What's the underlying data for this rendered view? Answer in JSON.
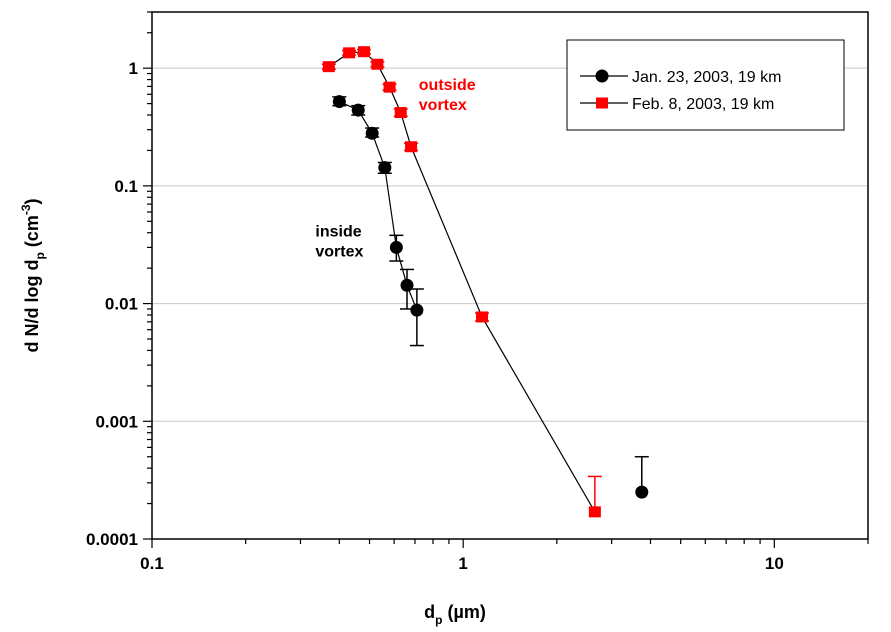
{
  "chart_data": {
    "type": "scatter",
    "x_scale": "log",
    "y_scale": "log",
    "xlim": [
      0.1,
      20
    ],
    "ylim": [
      0.0001,
      3
    ],
    "x_ticks": [
      {
        "value": 0.1,
        "label": "0.1"
      },
      {
        "value": 1,
        "label": "1"
      },
      {
        "value": 10,
        "label": "10"
      }
    ],
    "y_ticks": [
      {
        "value": 0.0001,
        "label": "0.0001"
      },
      {
        "value": 0.001,
        "label": "0.001"
      },
      {
        "value": 0.01,
        "label": "0.01"
      },
      {
        "value": 0.1,
        "label": "0.1"
      },
      {
        "value": 1,
        "label": "1"
      }
    ],
    "xlabel": {
      "main": "d",
      "sub": "p",
      "rest": " (µm)"
    },
    "ylabel": {
      "p1": "d N/d log d",
      "sub": "p",
      "p2": " (cm",
      "sup": "-3",
      "p3": ")"
    },
    "grid": "horizontal",
    "legend_position": "top-right",
    "series": [
      {
        "name": "Jan. 23, 2003, 19 km",
        "marker": "circle",
        "color": "#000000",
        "points": [
          {
            "x": 0.4,
            "y": 0.52,
            "lo": 0.48,
            "hi": 0.57
          },
          {
            "x": 0.46,
            "y": 0.44,
            "lo": 0.4,
            "hi": 0.48
          },
          {
            "x": 0.51,
            "y": 0.28,
            "lo": 0.26,
            "hi": 0.31
          },
          {
            "x": 0.56,
            "y": 0.143,
            "lo": 0.128,
            "hi": 0.158
          },
          {
            "x": 0.61,
            "y": 0.03,
            "lo": 0.023,
            "hi": 0.038
          },
          {
            "x": 0.66,
            "y": 0.0143,
            "lo": 0.009,
            "hi": 0.0195
          },
          {
            "x": 0.71,
            "y": 0.0088,
            "lo": 0.0044,
            "hi": 0.0133
          },
          {
            "x": 3.75,
            "y": 0.00025,
            "lo": 0.00025,
            "hi": 0.0005
          }
        ],
        "line_points": 7
      },
      {
        "name": "Feb. 8, 2003, 19 km",
        "marker": "square",
        "color": "#ff0000",
        "points": [
          {
            "x": 0.37,
            "y": 1.03,
            "lo": 0.98,
            "hi": 1.08
          },
          {
            "x": 0.43,
            "y": 1.35,
            "lo": 1.29,
            "hi": 1.41
          },
          {
            "x": 0.48,
            "y": 1.38,
            "lo": 1.32,
            "hi": 1.44
          },
          {
            "x": 0.53,
            "y": 1.08,
            "lo": 1.03,
            "hi": 1.13
          },
          {
            "x": 0.58,
            "y": 0.69,
            "lo": 0.65,
            "hi": 0.73
          },
          {
            "x": 0.63,
            "y": 0.42,
            "lo": 0.39,
            "hi": 0.45
          },
          {
            "x": 0.68,
            "y": 0.215,
            "lo": 0.2,
            "hi": 0.23
          },
          {
            "x": 1.15,
            "y": 0.0077,
            "lo": 0.0071,
            "hi": 0.0083
          },
          {
            "x": 2.65,
            "y": 0.00017,
            "lo": 0.00017,
            "hi": 0.00034
          }
        ],
        "line_points": 9
      }
    ],
    "annotations": [
      {
        "lines": [
          "outside",
          "vortex"
        ],
        "color": "#ff0000",
        "x": 0.72,
        "y": 0.65
      },
      {
        "lines": [
          "inside",
          "vortex"
        ],
        "color": "#000000",
        "x": 0.335,
        "y": 0.037
      }
    ]
  }
}
